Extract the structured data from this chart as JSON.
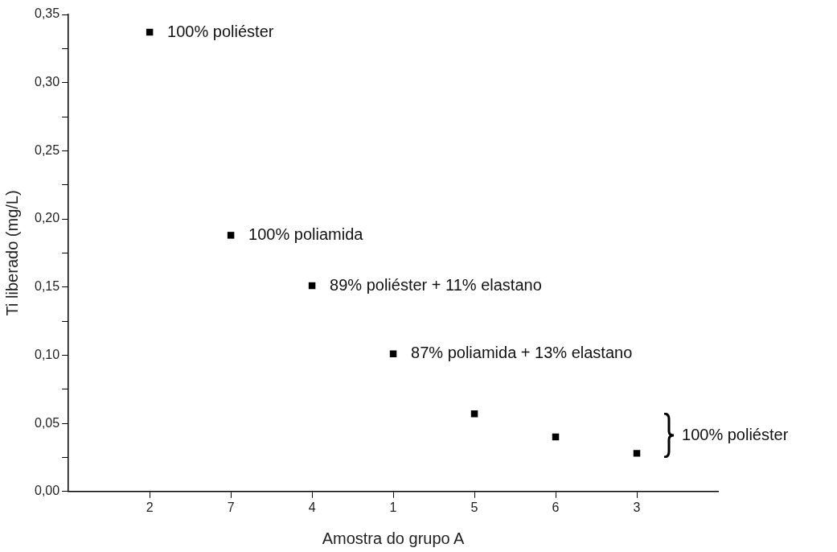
{
  "chart_data": {
    "type": "scatter",
    "xlabel": "Amostra do grupo A",
    "ylabel": "Ti liberado (mg/L)",
    "categories": [
      "2",
      "7",
      "4",
      "1",
      "5",
      "6",
      "3"
    ],
    "values": [
      0.337,
      0.188,
      0.151,
      0.101,
      0.057,
      0.04,
      0.028
    ],
    "color": "#000000",
    "marker": "square",
    "legend": false,
    "grid": false,
    "ylim": [
      0,
      0.35
    ],
    "yticks": [
      {
        "value": 0,
        "label": "0,00"
      },
      {
        "value": 0.025,
        "label": null
      },
      {
        "value": 0.05,
        "label": "0,05"
      },
      {
        "value": 0.075,
        "label": null
      },
      {
        "value": 0.1,
        "label": "0,10"
      },
      {
        "value": 0.125,
        "label": null
      },
      {
        "value": 0.15,
        "label": "0,15"
      },
      {
        "value": 0.175,
        "label": null
      },
      {
        "value": 0.2,
        "label": "0,20"
      },
      {
        "value": 0.225,
        "label": null
      },
      {
        "value": 0.25,
        "label": "0,25"
      },
      {
        "value": 0.275,
        "label": null
      },
      {
        "value": 0.3,
        "label": "0,30"
      },
      {
        "value": 0.325,
        "label": null
      },
      {
        "value": 0.35,
        "label": "0,35"
      }
    ],
    "annotations": [
      {
        "text": "100% poliéster",
        "x": "2",
        "y": 0.337
      },
      {
        "text": "100% poliamida",
        "x": "7",
        "y": 0.188
      },
      {
        "text": "89% poliéster + 11% elastano",
        "x": "4",
        "y": 0.151
      },
      {
        "text": "87% poliamida + 13% elastano",
        "x": "1",
        "y": 0.101
      },
      "100% poliéster"
    ]
  }
}
